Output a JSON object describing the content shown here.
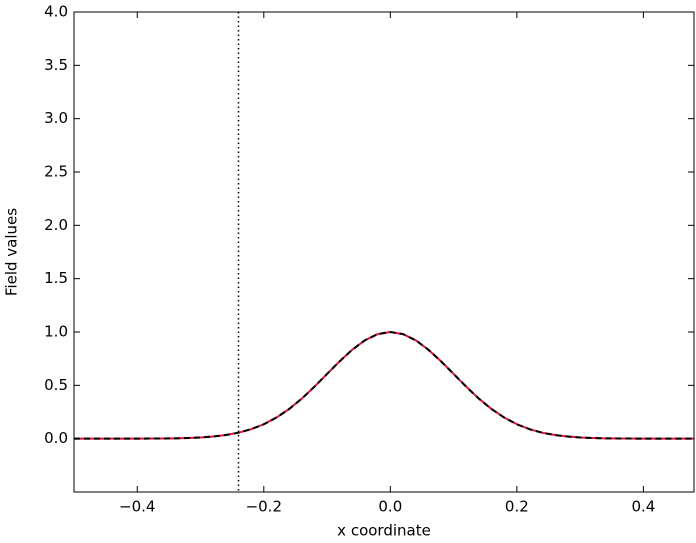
{
  "chart_data": {
    "type": "line",
    "xlabel": "x coordinate",
    "ylabel": "Field values",
    "x": [
      -0.5,
      -0.48,
      -0.46,
      -0.44,
      -0.42,
      -0.4,
      -0.38,
      -0.36,
      -0.34,
      -0.32,
      -0.3,
      -0.28,
      -0.26,
      -0.24,
      -0.22,
      -0.2,
      -0.18,
      -0.16,
      -0.14,
      -0.12,
      -0.1,
      -0.08,
      -0.06,
      -0.04,
      -0.02,
      0,
      0.02,
      0.04,
      0.06,
      0.08,
      0.1,
      0.12,
      0.14,
      0.16,
      0.18,
      0.2,
      0.22,
      0.24,
      0.26,
      0.28,
      0.3,
      0.32,
      0.34,
      0.36,
      0.38,
      0.4,
      0.42,
      0.44,
      0.46,
      0.48
    ],
    "series": [
      {
        "color": "#dc143c",
        "dash": false,
        "values": [
          0,
          0,
          0,
          0,
          0,
          0,
          0.001,
          0.002,
          0.003,
          0.006,
          0.011,
          0.02,
          0.034,
          0.056,
          0.089,
          0.135,
          0.198,
          0.278,
          0.375,
          0.487,
          0.607,
          0.726,
          0.835,
          0.923,
          0.98,
          1,
          0.98,
          0.923,
          0.835,
          0.726,
          0.607,
          0.487,
          0.375,
          0.278,
          0.198,
          0.135,
          0.089,
          0.056,
          0.034,
          0.02,
          0.011,
          0.006,
          0.003,
          0.002,
          0.001,
          0,
          0,
          0,
          0,
          0
        ]
      },
      {
        "color": "#000000",
        "dash": true,
        "values": [
          0,
          0,
          0,
          0,
          0,
          0,
          0.001,
          0.002,
          0.003,
          0.006,
          0.011,
          0.02,
          0.034,
          0.056,
          0.089,
          0.135,
          0.198,
          0.278,
          0.375,
          0.487,
          0.607,
          0.726,
          0.835,
          0.923,
          0.98,
          1,
          0.98,
          0.923,
          0.835,
          0.726,
          0.607,
          0.487,
          0.375,
          0.278,
          0.198,
          0.135,
          0.089,
          0.056,
          0.034,
          0.02,
          0.011,
          0.006,
          0.003,
          0.002,
          0.001,
          0,
          0,
          0,
          0,
          0
        ]
      }
    ],
    "vline": -0.24,
    "xlim": [
      -0.5,
      0.48
    ],
    "ylim": [
      -0.5,
      4.0
    ],
    "xticks": [
      {
        "value": -0.4,
        "label": "−0.4"
      },
      {
        "value": -0.2,
        "label": "−0.2"
      },
      {
        "value": 0,
        "label": "0.0"
      },
      {
        "value": 0.2,
        "label": "0.2"
      },
      {
        "value": 0.4,
        "label": "0.4"
      }
    ],
    "yticks": [
      {
        "value": 0,
        "label": "0.0"
      },
      {
        "value": 0.5,
        "label": "0.5"
      },
      {
        "value": 1,
        "label": "1.0"
      },
      {
        "value": 1.5,
        "label": "1.5"
      },
      {
        "value": 2,
        "label": "2.0"
      },
      {
        "value": 2.5,
        "label": "2.5"
      },
      {
        "value": 3,
        "label": "3.0"
      },
      {
        "value": 3.5,
        "label": "3.5"
      },
      {
        "value": 4,
        "label": "4.0"
      }
    ]
  }
}
